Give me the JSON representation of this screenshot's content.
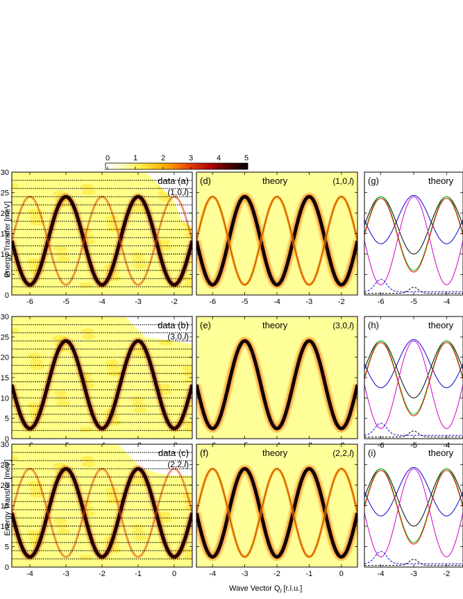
{
  "colorbar": {
    "ticks": [
      "0",
      "1",
      "2",
      "3",
      "4",
      "5"
    ],
    "range": [
      0,
      5
    ],
    "colormap": [
      "#ffffff",
      "#ffff99",
      "#ffdd00",
      "#ff8800",
      "#dd1100",
      "#880000",
      "#000000"
    ]
  },
  "axes": {
    "ylabel": "Energy Transfer [meV]",
    "xlabel": "Wave Vector  Q",
    "xlabel_sub": "l",
    "xlabel_unit": " [r.l.u.]",
    "y_ticks": [
      "0",
      "5",
      "10",
      "15",
      "20",
      "25",
      "30"
    ],
    "x_ticks_top": [
      "-6",
      "-5",
      "-4",
      "-3",
      "-2"
    ],
    "x_ticks_bottom": [
      "-4",
      "-3",
      "-2",
      "-1",
      "0"
    ],
    "x_ticks_right_top": [
      "-6",
      "-5",
      "-4"
    ],
    "x_ticks_right_bottom": [
      "-4",
      "-3",
      "-2"
    ]
  },
  "panels": {
    "a": {
      "label": "data",
      "letter": "(a)",
      "q": "(1,0,",
      "l": "l",
      "close": ")"
    },
    "b": {
      "label": "data",
      "letter": "(b)",
      "q": "(3,0,",
      "l": "l",
      "close": ")"
    },
    "c": {
      "label": "data",
      "letter": "(c)",
      "q": "(2,2,",
      "l": "l",
      "close": ")"
    },
    "d": {
      "label": "theory",
      "letter": "(d)",
      "q": "(1,0,",
      "l": "l",
      "close": ")"
    },
    "e": {
      "label": "theory",
      "letter": "(e)",
      "q": "(3,0,",
      "l": "l",
      "close": ")"
    },
    "f": {
      "label": "theory",
      "letter": "(f)",
      "q": "(2,2,",
      "l": "l",
      "close": ")"
    },
    "g": {
      "label": "theory",
      "letter": "(g)"
    },
    "h": {
      "label": "theory",
      "letter": "(h)"
    },
    "i": {
      "label": "theory",
      "letter": "(i)"
    }
  },
  "chart_data": {
    "type": "heatmap",
    "description_units": {
      "x": "r.l.u.",
      "y": "meV"
    },
    "ylim": [
      0,
      30
    ],
    "dispersion": {
      "acoustic_min_meV": 2.5,
      "max_meV": 24,
      "period_rlu": 2
    },
    "panel_xlim": {
      "row1": [
        -6.5,
        -1.5
      ],
      "row2": [
        -6.5,
        -1.5
      ],
      "row3": [
        -4.5,
        0.5
      ],
      "right_row1": [
        -6.5,
        -3.5
      ],
      "right_row2": [
        -6.5,
        -3.5
      ],
      "right_row3": [
        -4.5,
        -1.5
      ]
    },
    "scan_energies_meV": [
      2,
      4,
      6,
      8,
      10,
      12,
      14,
      16,
      18,
      20,
      22,
      24,
      26,
      28
    ],
    "line_colors": [
      "#000000",
      "#00cc00",
      "#0000cc",
      "#cc00cc",
      "#00cccc",
      "#ff0000"
    ],
    "background_color": "#ffff99"
  }
}
